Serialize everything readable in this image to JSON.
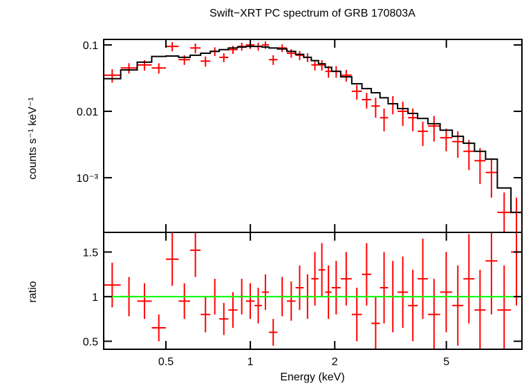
{
  "chart_data": [
    {
      "type": "errorbar",
      "title": "Swift−XRT PC spectrum of GRB 170803A",
      "ylabel": "counts s⁻¹ keV⁻¹",
      "ylog": true,
      "xlog": true,
      "xlim": [
        0.3,
        9.3
      ],
      "ylim": [
        0.00015,
        0.121
      ],
      "yticks": [
        0.1,
        0.01,
        {
          "value": 0.001,
          "label": "10⁻³"
        }
      ],
      "bins": [
        0.3,
        0.345,
        0.395,
        0.445,
        0.5,
        0.555,
        0.61,
        0.665,
        0.72,
        0.775,
        0.835,
        0.9,
        0.965,
        1.035,
        1.1,
        1.165,
        1.25,
        1.35,
        1.45,
        1.55,
        1.65,
        1.75,
        1.85,
        1.95,
        2.1,
        2.3,
        2.5,
        2.7,
        2.9,
        3.1,
        3.35,
        3.65,
        3.95,
        4.3,
        4.75,
        5.25,
        5.75,
        6.3,
        6.9,
        7.6,
        8.5,
        9.3
      ],
      "data": {
        "color": "#ff0000",
        "values": [
          0.035,
          0.045,
          0.05,
          0.045,
          0.095,
          0.06,
          0.09,
          0.057,
          0.08,
          0.065,
          0.085,
          0.095,
          0.1,
          0.095,
          0.1,
          0.06,
          0.09,
          0.075,
          0.07,
          0.065,
          0.05,
          0.05,
          0.04,
          0.04,
          0.035,
          0.02,
          0.015,
          0.012,
          0.008,
          0.013,
          0.01,
          0.008,
          0.005,
          0.006,
          0.004,
          0.0035,
          0.0025,
          0.0018,
          0.0012,
          0.0003,
          0.0003
        ],
        "errors": [
          0.008,
          0.008,
          0.009,
          0.008,
          0.015,
          0.01,
          0.015,
          0.01,
          0.012,
          0.01,
          0.012,
          0.013,
          0.013,
          0.013,
          0.013,
          0.01,
          0.012,
          0.011,
          0.011,
          0.01,
          0.009,
          0.009,
          0.008,
          0.008,
          0.007,
          0.005,
          0.004,
          0.004,
          0.003,
          0.004,
          0.004,
          0.003,
          0.002,
          0.0025,
          0.0015,
          0.0015,
          0.0012,
          0.001,
          0.0007,
          0.0003,
          0.0002
        ]
      },
      "model": {
        "color": "#000000",
        "values": [
          0.031,
          0.042,
          0.055,
          0.067,
          0.068,
          0.065,
          0.07,
          0.075,
          0.08,
          0.085,
          0.09,
          0.093,
          0.095,
          0.095,
          0.093,
          0.09,
          0.087,
          0.08,
          0.072,
          0.065,
          0.058,
          0.052,
          0.046,
          0.04,
          0.033,
          0.026,
          0.022,
          0.019,
          0.016,
          0.013,
          0.011,
          0.0093,
          0.0078,
          0.0065,
          0.0052,
          0.0042,
          0.0033,
          0.0025,
          0.0019,
          0.0007,
          0.0003
        ]
      }
    },
    {
      "type": "errorbar",
      "ylabel": "ratio",
      "xlabel": "Energy (keV)",
      "ylim": [
        0.41,
        1.72
      ],
      "yticks": [
        0.5,
        1,
        1.5
      ],
      "xticks": [
        0.5,
        1,
        2,
        5
      ],
      "data": {
        "color": "#ff0000",
        "values": [
          1.13,
          1.0,
          0.95,
          0.65,
          1.42,
          0.95,
          1.52,
          0.8,
          1.0,
          0.75,
          0.85,
          1.0,
          0.95,
          0.9,
          1.05,
          0.6,
          1.0,
          0.95,
          1.1,
          1.0,
          1.2,
          1.3,
          1.05,
          1.1,
          1.2,
          0.8,
          1.25,
          0.7,
          1.1,
          1.0,
          1.05,
          0.9,
          1.2,
          0.8,
          1.05,
          0.9,
          1.2,
          0.85,
          1.4,
          0.85,
          1.5
        ],
        "errors": [
          0.25,
          0.22,
          0.2,
          0.15,
          0.3,
          0.2,
          0.3,
          0.2,
          0.2,
          0.18,
          0.2,
          0.2,
          0.2,
          0.2,
          0.2,
          0.15,
          0.22,
          0.22,
          0.25,
          0.25,
          0.3,
          0.3,
          0.3,
          0.3,
          0.3,
          0.3,
          0.35,
          0.3,
          0.4,
          0.4,
          0.4,
          0.4,
          0.45,
          0.4,
          0.45,
          0.45,
          0.5,
          0.45,
          0.6,
          0.5,
          0.6
        ]
      },
      "reference": {
        "value": 1,
        "color": "#00ff00"
      }
    }
  ]
}
